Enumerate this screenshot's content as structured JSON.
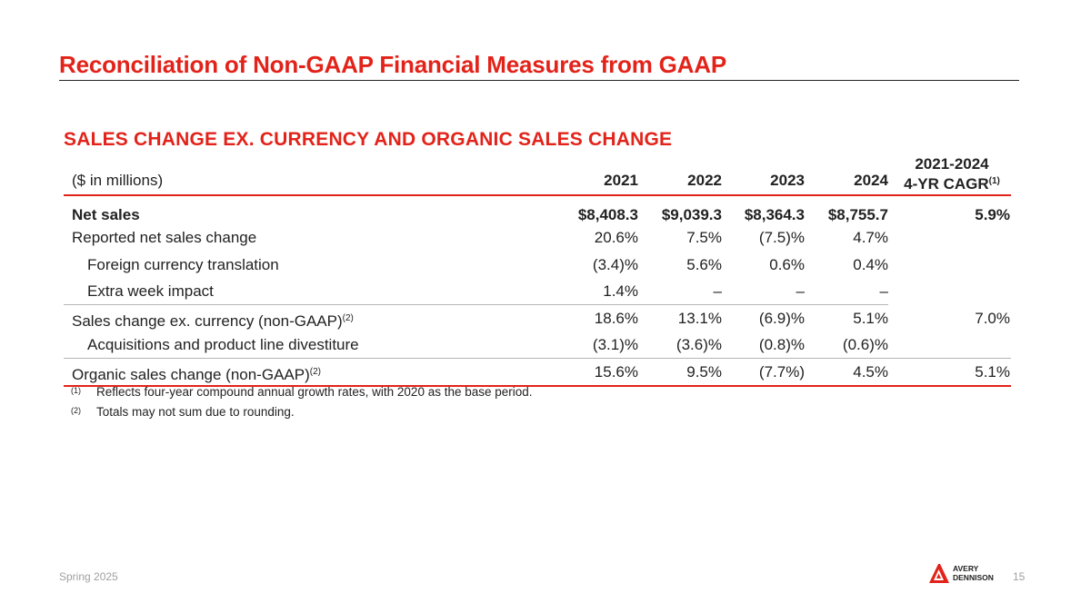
{
  "header": {
    "title": "Reconciliation of Non-GAAP Financial Measures from GAAP"
  },
  "section": {
    "title": "SALES CHANGE EX. CURRENCY AND ORGANIC SALES CHANGE"
  },
  "table": {
    "units_label": "($ in millions)",
    "columns": [
      "2021",
      "2022",
      "2023",
      "2024"
    ],
    "cagr_header_line1": "2021-2024",
    "cagr_header_line2": "4-YR CAGR",
    "cagr_footnote_mark": "(1)",
    "rows": [
      {
        "label": "Net sales",
        "sup": "",
        "values": [
          "$8,408.3",
          "$9,039.3",
          "$8,364.3",
          "$8,755.7"
        ],
        "cagr": "5.9%"
      },
      {
        "label": "Reported net sales change",
        "sup": "",
        "values": [
          "20.6%",
          "7.5%",
          "(7.5)%",
          "4.7%"
        ],
        "cagr": ""
      },
      {
        "label": "Foreign currency translation",
        "sup": "",
        "values": [
          "(3.4)%",
          "5.6%",
          "0.6%",
          "0.4%"
        ],
        "cagr": ""
      },
      {
        "label": "Extra week impact",
        "sup": "",
        "values": [
          "1.4%",
          "–",
          "–",
          "–"
        ],
        "cagr": ""
      },
      {
        "label": "Sales change ex. currency (non-GAAP)",
        "sup": "(2)",
        "values": [
          "18.6%",
          "13.1%",
          "(6.9)%",
          "5.1%"
        ],
        "cagr": "7.0%"
      },
      {
        "label": "Acquisitions and product line divestiture",
        "sup": "",
        "values": [
          "(3.1)%",
          "(3.6)%",
          "(0.8)%",
          "(0.6)%"
        ],
        "cagr": ""
      },
      {
        "label": "Organic sales change (non-GAAP)",
        "sup": "(2)",
        "values": [
          "15.6%",
          "9.5%",
          "(7.7%)",
          "4.5%"
        ],
        "cagr": "5.1%"
      }
    ]
  },
  "footnotes": [
    {
      "mark": "(1)",
      "text": "Reflects four-year compound annual growth rates, with 2020 as the base period."
    },
    {
      "mark": "(2)",
      "text": "Totals may not sum due to rounding."
    }
  ],
  "footer": {
    "date": "Spring 2025",
    "page_number": "15",
    "logo_line1": "AVERY",
    "logo_line2": "DENNISON"
  },
  "colors": {
    "accent": "#e2231a",
    "text": "#222222",
    "footer_text": "#a0a0a0"
  }
}
